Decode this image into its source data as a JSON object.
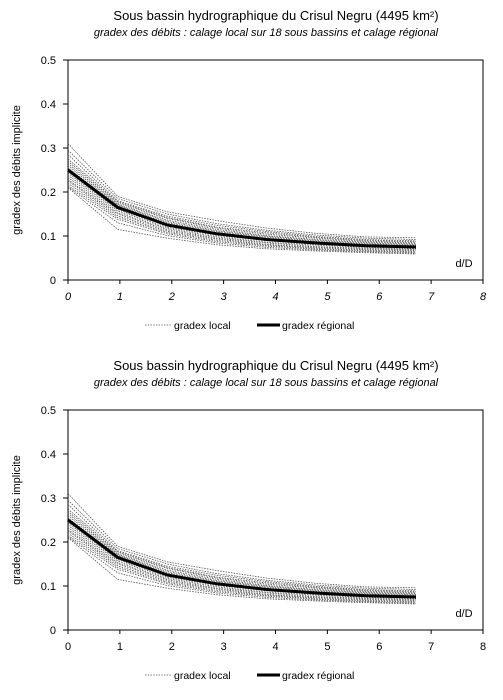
{
  "chart_data": [
    {
      "type": "line",
      "title": "Sous bassin hydrographique du Crisul Negru (4495 km²)",
      "subtitle": "gradex des débits : calage local sur 18 sous bassins et calage régional",
      "xlabel": "d/D",
      "ylabel": "gradex des débits implicite",
      "xlim": [
        0,
        8
      ],
      "ylim": [
        0,
        0.5
      ],
      "x_ticks": [
        "0",
        "1",
        "2",
        "3",
        "4",
        "5",
        "6",
        "7",
        "8"
      ],
      "y_ticks": [
        "0",
        "0.1",
        "0.2",
        "0.3",
        "0.4",
        "0.5"
      ],
      "x_ticks_italic": true,
      "grid": false,
      "legend_position": "bottom",
      "legend": [
        "gradex local",
        "gradex régional"
      ],
      "x": [
        0,
        1,
        2,
        3,
        4,
        5,
        6,
        7
      ],
      "series": [
        {
          "name": "gradex régional",
          "style": "thick-solid",
          "values": [
            0.25,
            0.165,
            0.125,
            0.105,
            0.092,
            0.084,
            0.078,
            0.075
          ]
        },
        {
          "style": "thin-dotted",
          "values": [
            0.31,
            0.19,
            0.155,
            0.135,
            0.118,
            0.106,
            0.098,
            0.096
          ]
        },
        {
          "style": "thin-dotted",
          "values": [
            0.295,
            0.185,
            0.15,
            0.128,
            0.113,
            0.102,
            0.095,
            0.092
          ]
        },
        {
          "style": "thin-dotted",
          "values": [
            0.285,
            0.18,
            0.145,
            0.124,
            0.11,
            0.099,
            0.092,
            0.089
          ]
        },
        {
          "style": "thin-dotted",
          "values": [
            0.275,
            0.178,
            0.142,
            0.12,
            0.107,
            0.097,
            0.09,
            0.087
          ]
        },
        {
          "style": "thin-dotted",
          "values": [
            0.27,
            0.175,
            0.14,
            0.118,
            0.104,
            0.095,
            0.088,
            0.085
          ]
        },
        {
          "style": "thin-dotted",
          "values": [
            0.265,
            0.172,
            0.136,
            0.115,
            0.101,
            0.092,
            0.086,
            0.083
          ]
        },
        {
          "style": "thin-dotted",
          "values": [
            0.26,
            0.17,
            0.133,
            0.112,
            0.099,
            0.09,
            0.084,
            0.081
          ]
        },
        {
          "style": "thin-dotted",
          "values": [
            0.255,
            0.168,
            0.13,
            0.11,
            0.097,
            0.088,
            0.082,
            0.079
          ]
        },
        {
          "style": "thin-dotted",
          "values": [
            0.248,
            0.165,
            0.127,
            0.107,
            0.094,
            0.085,
            0.08,
            0.077
          ]
        },
        {
          "style": "thin-dotted",
          "values": [
            0.243,
            0.16,
            0.123,
            0.104,
            0.091,
            0.083,
            0.078,
            0.075
          ]
        },
        {
          "style": "thin-dotted",
          "values": [
            0.238,
            0.157,
            0.12,
            0.101,
            0.089,
            0.081,
            0.076,
            0.073
          ]
        },
        {
          "style": "thin-dotted",
          "values": [
            0.233,
            0.153,
            0.117,
            0.098,
            0.086,
            0.079,
            0.074,
            0.071
          ]
        },
        {
          "style": "thin-dotted",
          "values": [
            0.228,
            0.15,
            0.114,
            0.095,
            0.084,
            0.076,
            0.072,
            0.069
          ]
        },
        {
          "style": "thin-dotted",
          "values": [
            0.225,
            0.146,
            0.111,
            0.093,
            0.081,
            0.074,
            0.07,
            0.067
          ]
        },
        {
          "style": "thin-dotted",
          "values": [
            0.22,
            0.142,
            0.108,
            0.09,
            0.079,
            0.072,
            0.068,
            0.065
          ]
        },
        {
          "style": "thin-dotted",
          "values": [
            0.215,
            0.138,
            0.105,
            0.087,
            0.077,
            0.07,
            0.066,
            0.063
          ]
        },
        {
          "style": "thin-dotted",
          "values": [
            0.212,
            0.13,
            0.101,
            0.084,
            0.074,
            0.068,
            0.064,
            0.061
          ]
        },
        {
          "style": "thin-dotted",
          "values": [
            0.21,
            0.115,
            0.095,
            0.08,
            0.071,
            0.066,
            0.062,
            0.059
          ]
        }
      ]
    },
    {
      "type": "line",
      "title": "Sous bassin hydrographique du Crisul Negru (4495 km²)",
      "subtitle": "gradex des débits : calage local sur 18 sous bassins et calage régional",
      "xlabel": "d/D",
      "ylabel": "gradex des débits implicite",
      "xlim": [
        0,
        8
      ],
      "ylim": [
        0,
        0.5
      ],
      "x_ticks": [
        "0",
        "1",
        "2",
        "3",
        "4",
        "5",
        "6",
        "7",
        "8"
      ],
      "y_ticks": [
        "0",
        "0.1",
        "0.2",
        "0.3",
        "0.4",
        "0.5"
      ],
      "x_ticks_italic": false,
      "grid": false,
      "legend_position": "bottom",
      "legend": [
        "gradex local",
        "gradex régional"
      ],
      "x": [
        0,
        1,
        2,
        3,
        4,
        5,
        6,
        7
      ],
      "series": [
        {
          "name": "gradex régional",
          "style": "thick-solid",
          "values": [
            0.25,
            0.165,
            0.125,
            0.105,
            0.092,
            0.084,
            0.078,
            0.075
          ]
        },
        {
          "style": "thin-dotted",
          "values": [
            0.31,
            0.19,
            0.155,
            0.135,
            0.118,
            0.106,
            0.098,
            0.096
          ]
        },
        {
          "style": "thin-dotted",
          "values": [
            0.295,
            0.185,
            0.15,
            0.128,
            0.113,
            0.102,
            0.095,
            0.092
          ]
        },
        {
          "style": "thin-dotted",
          "values": [
            0.285,
            0.18,
            0.145,
            0.124,
            0.11,
            0.099,
            0.092,
            0.089
          ]
        },
        {
          "style": "thin-dotted",
          "values": [
            0.275,
            0.178,
            0.142,
            0.12,
            0.107,
            0.097,
            0.09,
            0.087
          ]
        },
        {
          "style": "thin-dotted",
          "values": [
            0.27,
            0.175,
            0.14,
            0.118,
            0.104,
            0.095,
            0.088,
            0.085
          ]
        },
        {
          "style": "thin-dotted",
          "values": [
            0.265,
            0.172,
            0.136,
            0.115,
            0.101,
            0.092,
            0.086,
            0.083
          ]
        },
        {
          "style": "thin-dotted",
          "values": [
            0.26,
            0.17,
            0.133,
            0.112,
            0.099,
            0.09,
            0.084,
            0.081
          ]
        },
        {
          "style": "thin-dotted",
          "values": [
            0.255,
            0.168,
            0.13,
            0.11,
            0.097,
            0.088,
            0.082,
            0.079
          ]
        },
        {
          "style": "thin-dotted",
          "values": [
            0.248,
            0.165,
            0.127,
            0.107,
            0.094,
            0.085,
            0.08,
            0.077
          ]
        },
        {
          "style": "thin-dotted",
          "values": [
            0.243,
            0.16,
            0.123,
            0.104,
            0.091,
            0.083,
            0.078,
            0.075
          ]
        },
        {
          "style": "thin-dotted",
          "values": [
            0.238,
            0.157,
            0.12,
            0.101,
            0.089,
            0.081,
            0.076,
            0.073
          ]
        },
        {
          "style": "thin-dotted",
          "values": [
            0.233,
            0.153,
            0.117,
            0.098,
            0.086,
            0.079,
            0.074,
            0.071
          ]
        },
        {
          "style": "thin-dotted",
          "values": [
            0.228,
            0.15,
            0.114,
            0.095,
            0.084,
            0.076,
            0.072,
            0.069
          ]
        },
        {
          "style": "thin-dotted",
          "values": [
            0.225,
            0.146,
            0.111,
            0.093,
            0.081,
            0.074,
            0.07,
            0.067
          ]
        },
        {
          "style": "thin-dotted",
          "values": [
            0.22,
            0.142,
            0.108,
            0.09,
            0.079,
            0.072,
            0.068,
            0.065
          ]
        },
        {
          "style": "thin-dotted",
          "values": [
            0.215,
            0.138,
            0.105,
            0.087,
            0.077,
            0.07,
            0.066,
            0.063
          ]
        },
        {
          "style": "thin-dotted",
          "values": [
            0.212,
            0.13,
            0.101,
            0.084,
            0.074,
            0.068,
            0.064,
            0.061
          ]
        },
        {
          "style": "thin-dotted",
          "values": [
            0.21,
            0.115,
            0.095,
            0.08,
            0.071,
            0.066,
            0.062,
            0.059
          ]
        }
      ]
    }
  ]
}
